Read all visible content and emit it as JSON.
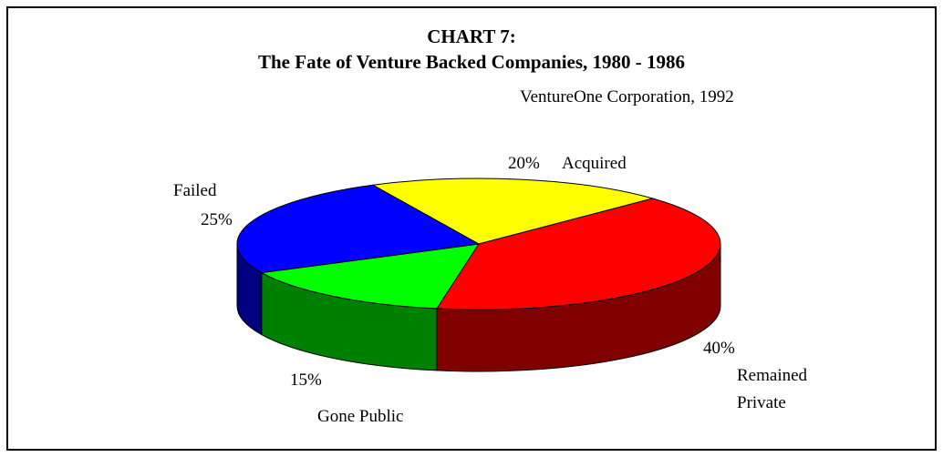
{
  "chart_data": {
    "type": "pie3d",
    "title": "CHART 7:",
    "subtitle": "The Fate of Venture Backed Companies, 1980 - 1986",
    "source": "VentureOne Corporation, 1992",
    "categories": [
      "Acquired",
      "Remained Private",
      "Gone Public",
      "Failed"
    ],
    "values": [
      20,
      40,
      15,
      25
    ],
    "value_labels": [
      "20%",
      "40%",
      "15%",
      "25%"
    ],
    "colors": [
      "#ffff00",
      "#ff0000",
      "#00ff00",
      "#0000ff"
    ],
    "shade_colors": [
      "#808000",
      "#800000",
      "#008000",
      "#000080"
    ]
  }
}
